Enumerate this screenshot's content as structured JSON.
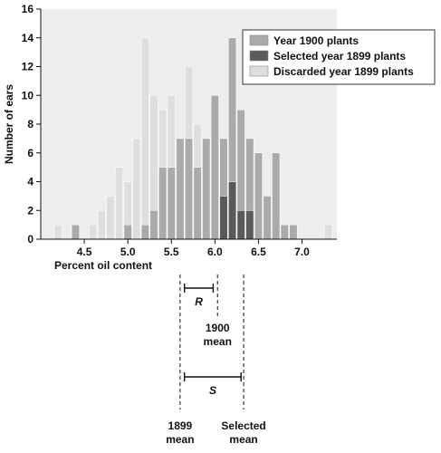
{
  "chart_data": {
    "type": "bar",
    "xlabel": "Percent oil content",
    "ylabel": "Number of ears",
    "xlim": [
      4.0,
      7.4
    ],
    "ylim": [
      0,
      16
    ],
    "x_ticks": [
      "4.5",
      "5.0",
      "5.5",
      "6.0",
      "6.5",
      "7.0"
    ],
    "x_tick_values": [
      4.5,
      5.0,
      5.5,
      6.0,
      6.5,
      7.0
    ],
    "y_ticks": [
      0,
      2,
      4,
      6,
      8,
      10,
      12,
      14,
      16
    ],
    "bin_width": 0.1,
    "grid": false,
    "legend_position": "top-right",
    "series": [
      {
        "name": "Discarded year 1899 plants",
        "color": "#dedede",
        "x": [
          4.2,
          4.4,
          4.6,
          4.7,
          4.8,
          4.9,
          5.0,
          5.1,
          5.2,
          5.3,
          5.4,
          5.5,
          5.6,
          5.7,
          5.8,
          5.9,
          6.0,
          6.1,
          6.2,
          6.4,
          7.3
        ],
        "values": [
          1,
          1,
          1,
          2,
          3,
          5,
          4,
          7,
          14,
          10,
          9,
          10,
          7,
          12,
          8,
          7,
          9,
          6,
          8,
          1,
          1
        ]
      },
      {
        "name": "Year 1900 plants",
        "color": "#aaaaaa",
        "x": [
          4.4,
          5.0,
          5.2,
          5.3,
          5.4,
          5.5,
          5.6,
          5.7,
          5.8,
          5.9,
          6.0,
          6.1,
          6.2,
          6.3,
          6.4,
          6.5,
          6.6,
          6.7,
          6.8,
          6.9
        ],
        "values": [
          1,
          1,
          1,
          2,
          5,
          5,
          7,
          7,
          5,
          7,
          10,
          7,
          14,
          9,
          7,
          6,
          3,
          6,
          1,
          1
        ]
      },
      {
        "name": "Selected year 1899 plants",
        "color": "#5a5a5a",
        "x": [
          6.1,
          6.2,
          6.3,
          6.4
        ],
        "values": [
          3,
          4,
          2,
          2
        ]
      }
    ],
    "annotations": {
      "mean_1899": {
        "x": 5.6,
        "label": "1899\nmean"
      },
      "mean_1900": {
        "x": 6.03,
        "label": "1900\nmean"
      },
      "mean_selected": {
        "x": 6.33,
        "label": "Selected\nmean"
      },
      "R": {
        "from": 5.65,
        "to": 5.98,
        "label": "R"
      },
      "S": {
        "from": 5.65,
        "to": 6.3,
        "label": "S"
      }
    }
  }
}
